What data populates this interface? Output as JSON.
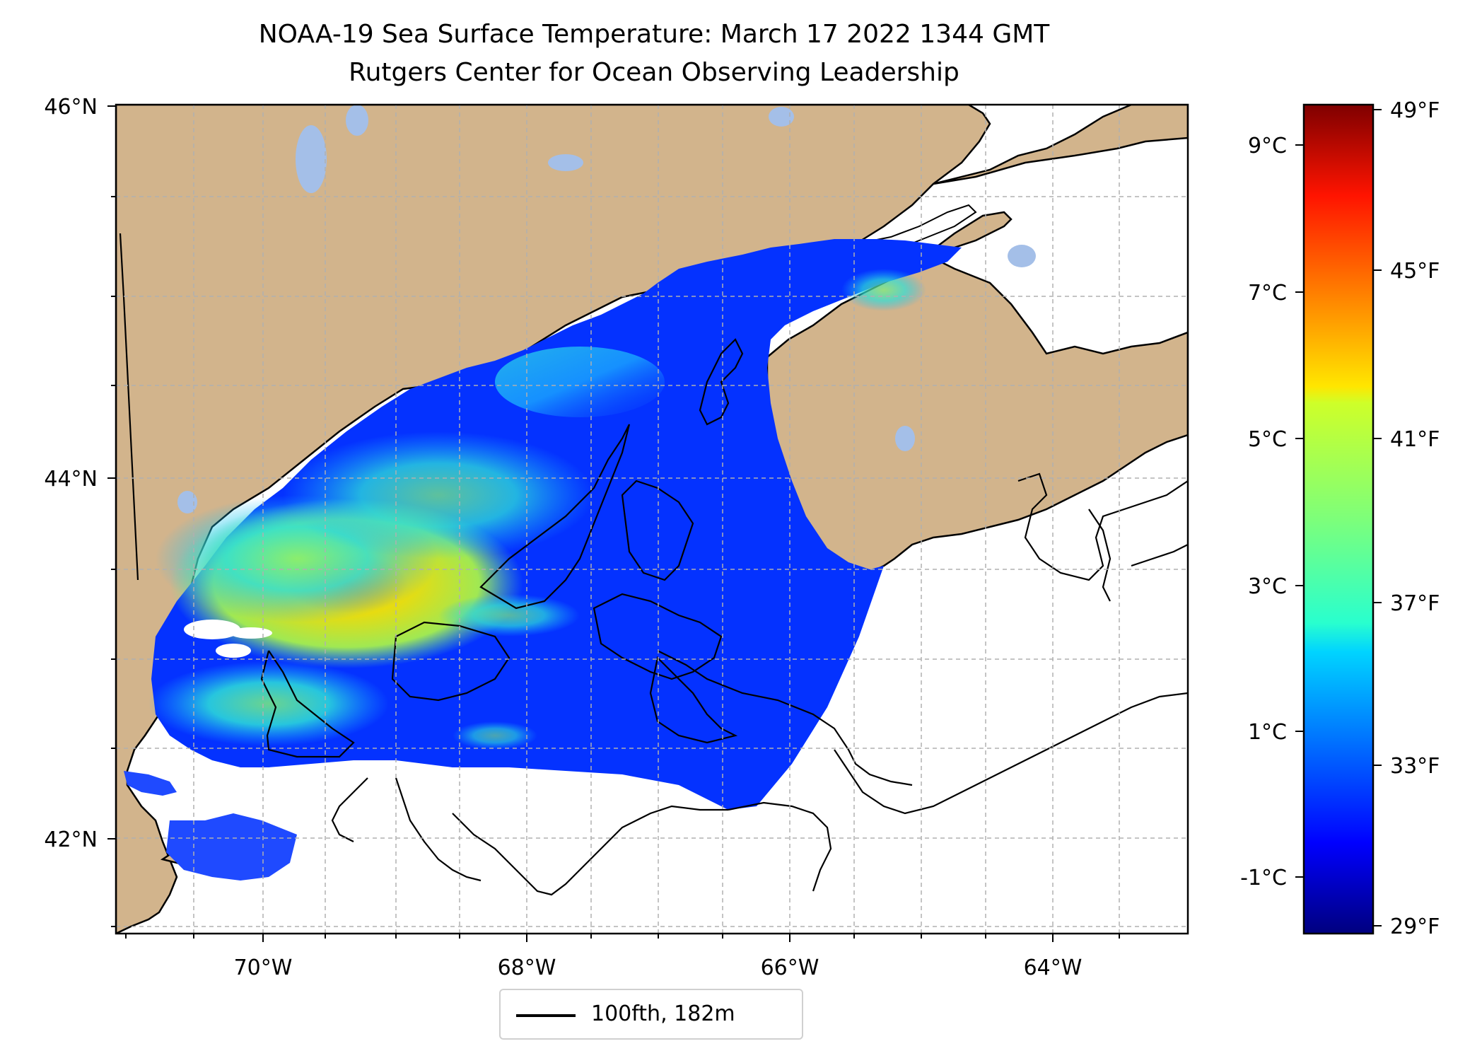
{
  "title": {
    "line1": "NOAA-19 Sea Surface Temperature: March 17 2022 1344 GMT",
    "line2": "Rutgers Center for Ocean Observing Leadership"
  },
  "map": {
    "lat_labels": [
      "46°N",
      "44°N",
      "42°N"
    ],
    "lon_labels": [
      "70°W",
      "68°W",
      "66°W",
      "64°W"
    ],
    "lon_range": [
      -71.1,
      -62.9
    ],
    "lat_range": [
      41.5,
      46.0
    ],
    "gridlines": true,
    "colors": {
      "land": "#d2b48c",
      "lakes": "#a4bfe8",
      "ocean_nodata": "#ffffff",
      "coastline": "#000000",
      "gridline": "#b0b0b0"
    }
  },
  "colorbar": {
    "celsius_labels": [
      "9°C",
      "7°C",
      "5°C",
      "3°C",
      "1°C",
      "-1°C"
    ],
    "fahrenheit_labels": [
      "49°F",
      "45°F",
      "41°F",
      "37°F",
      "33°F",
      "29°F"
    ],
    "colormap": "jet",
    "range_f": [
      29,
      49.5
    ]
  },
  "legend": {
    "label": "100fth, 182m",
    "line_color": "#000000"
  }
}
